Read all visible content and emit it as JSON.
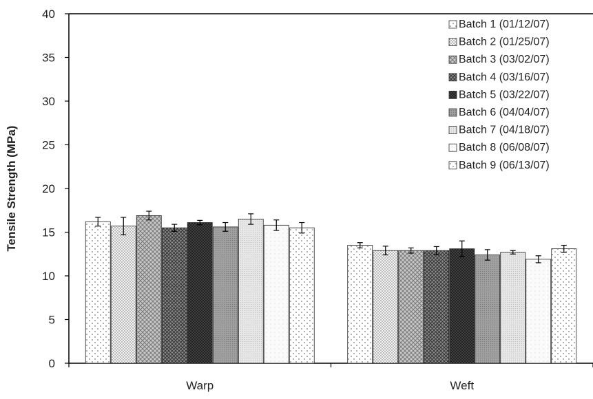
{
  "chart_data": {
    "type": "bar",
    "title": "",
    "xlabel": "",
    "ylabel": "Tensile Strength (MPa)",
    "ylim": [
      0,
      40
    ],
    "yticks": [
      "0",
      "5",
      "10",
      "15",
      "20",
      "25",
      "30",
      "35",
      "40"
    ],
    "categories": [
      "Warp",
      "Weft"
    ],
    "grid": false,
    "legend_position": "top-right",
    "series": [
      {
        "name": "Batch 1 (01/12/07)",
        "values": [
          16.2,
          13.5
        ],
        "errors": [
          0.5,
          0.3
        ],
        "pattern": "sparse-dots"
      },
      {
        "name": "Batch 2 (01/25/07)",
        "values": [
          15.7,
          12.9
        ],
        "errors": [
          1.0,
          0.5
        ],
        "pattern": "fine-dots"
      },
      {
        "name": "Batch 3 (03/02/07)",
        "values": [
          16.9,
          12.9
        ],
        "errors": [
          0.5,
          0.3
        ],
        "pattern": "diamond-light"
      },
      {
        "name": "Batch 4 (03/16/07)",
        "values": [
          15.5,
          12.9
        ],
        "errors": [
          0.4,
          0.45
        ],
        "pattern": "diamond-dark"
      },
      {
        "name": "Batch 5 (03/22/07)",
        "values": [
          16.1,
          13.1
        ],
        "errors": [
          0.25,
          0.9
        ],
        "pattern": "dark-dots"
      },
      {
        "name": "Batch 6 (04/04/07)",
        "values": [
          15.6,
          12.4
        ],
        "errors": [
          0.5,
          0.6
        ],
        "pattern": "medium-grey"
      },
      {
        "name": "Batch 7 (04/18/07)",
        "values": [
          16.5,
          12.7
        ],
        "errors": [
          0.6,
          0.2
        ],
        "pattern": "light-grey"
      },
      {
        "name": "Batch 8 (06/08/07)",
        "values": [
          15.8,
          11.9
        ],
        "errors": [
          0.6,
          0.4
        ],
        "pattern": "very-light"
      },
      {
        "name": "Batch 9 (06/13/07)",
        "values": [
          15.5,
          13.1
        ],
        "errors": [
          0.6,
          0.4
        ],
        "pattern": "sparse-dots"
      }
    ]
  }
}
